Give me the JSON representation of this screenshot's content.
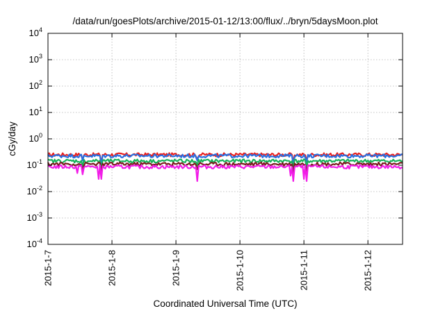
{
  "chart_data": {
    "type": "line",
    "title": "/data/run/goesPlots/archive/2015-01-12/13:00/flux/../bryn/5daysMoon.plot",
    "xlabel": "Coordinated Universal Time (UTC)",
    "ylabel": "cGy/day",
    "yscale": "log",
    "ylim": [
      0.0001,
      10000
    ],
    "xlim": [
      "2015-01-07T00:00",
      "2015-01-12T13:00"
    ],
    "x_ticks": [
      "2015-1-7",
      "2015-1-8",
      "2015-1-9",
      "2015-1-10",
      "2015-1-11",
      "2015-1-12"
    ],
    "y_ticks": [
      {
        "value": 0.0001,
        "base": "10",
        "exp": "-4"
      },
      {
        "value": 0.001,
        "base": "10",
        "exp": "-3"
      },
      {
        "value": 0.01,
        "base": "10",
        "exp": "-2"
      },
      {
        "value": 0.1,
        "base": "10",
        "exp": "-1"
      },
      {
        "value": 1,
        "base": "10",
        "exp": "0"
      },
      {
        "value": 10,
        "base": "10",
        "exp": "1"
      },
      {
        "value": 100,
        "base": "10",
        "exp": "2"
      },
      {
        "value": 1000,
        "base": "10",
        "exp": "3"
      },
      {
        "value": 10000,
        "base": "10",
        "exp": "4"
      }
    ],
    "grid": true,
    "legend": "none",
    "series": [
      {
        "color": "#e8211f",
        "level": 0.26,
        "dips": [
          {
            "x": "2015-01-07T13:00",
            "y": 0.17
          },
          {
            "x": "2015-01-07T20:00",
            "y": 0.12
          },
          {
            "x": "2015-01-09T08:00",
            "y": 0.17
          },
          {
            "x": "2015-01-10T20:00",
            "y": 0.13
          },
          {
            "x": "2015-01-11T01:00",
            "y": 0.15
          }
        ]
      },
      {
        "color": "#2a6fe0",
        "level": 0.235,
        "dips": [
          {
            "x": "2015-01-07T13:00",
            "y": 0.15
          },
          {
            "x": "2015-01-07T20:00",
            "y": 0.1
          },
          {
            "x": "2015-01-09T08:00",
            "y": 0.15
          },
          {
            "x": "2015-01-10T20:00",
            "y": 0.11
          },
          {
            "x": "2015-01-11T01:00",
            "y": 0.13
          }
        ]
      },
      {
        "color": "#17b15a",
        "level": 0.15,
        "dips": [
          {
            "x": "2015-01-07T13:00",
            "y": 0.09
          },
          {
            "x": "2015-01-07T20:00",
            "y": 0.07
          },
          {
            "x": "2015-01-09T08:00",
            "y": 0.1
          },
          {
            "x": "2015-01-10T20:00",
            "y": 0.08
          },
          {
            "x": "2015-01-11T01:00",
            "y": 0.09
          }
        ]
      },
      {
        "color": "#7a1e1e",
        "level": 0.115,
        "dips": [
          {
            "x": "2015-01-07T13:00",
            "y": 0.07
          },
          {
            "x": "2015-01-07T20:00",
            "y": 0.05
          },
          {
            "x": "2015-01-09T08:00",
            "y": 0.07
          },
          {
            "x": "2015-01-10T20:00",
            "y": 0.05
          },
          {
            "x": "2015-01-11T01:00",
            "y": 0.06
          }
        ]
      },
      {
        "color": "#f21ce8",
        "level": 0.09,
        "dips": [
          {
            "x": "2015-01-07T11:00",
            "y": 0.05
          },
          {
            "x": "2015-01-07T13:00",
            "y": 0.045
          },
          {
            "x": "2015-01-07T19:00",
            "y": 0.03
          },
          {
            "x": "2015-01-07T20:00",
            "y": 0.03
          },
          {
            "x": "2015-01-09T08:00",
            "y": 0.025
          },
          {
            "x": "2015-01-10T19:00",
            "y": 0.04
          },
          {
            "x": "2015-01-10T20:00",
            "y": 0.025
          },
          {
            "x": "2015-01-11T00:00",
            "y": 0.03
          },
          {
            "x": "2015-01-11T01:00",
            "y": 0.025
          }
        ]
      }
    ]
  }
}
